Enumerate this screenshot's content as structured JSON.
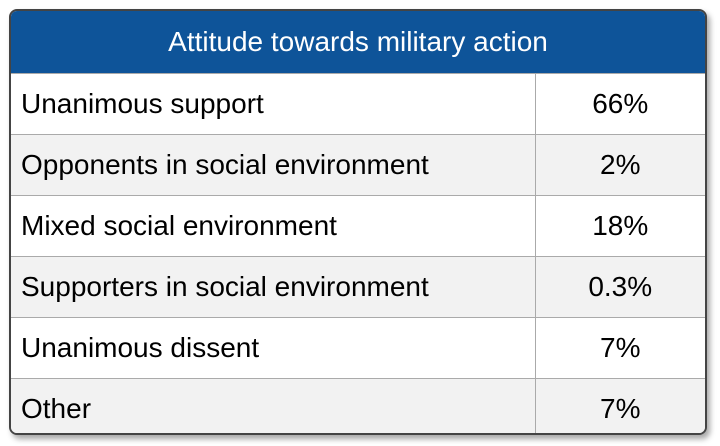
{
  "table": {
    "title": "Attitude towards military action",
    "rows": [
      [
        "Unanimous support",
        "66%"
      ],
      [
        "Opponents in social environment",
        "2%"
      ],
      [
        "Mixed social environment",
        "18%"
      ],
      [
        "Supporters in social environment",
        "0.3%"
      ],
      [
        "Unanimous dissent",
        "7%"
      ],
      [
        "Other",
        "7%"
      ]
    ]
  }
}
